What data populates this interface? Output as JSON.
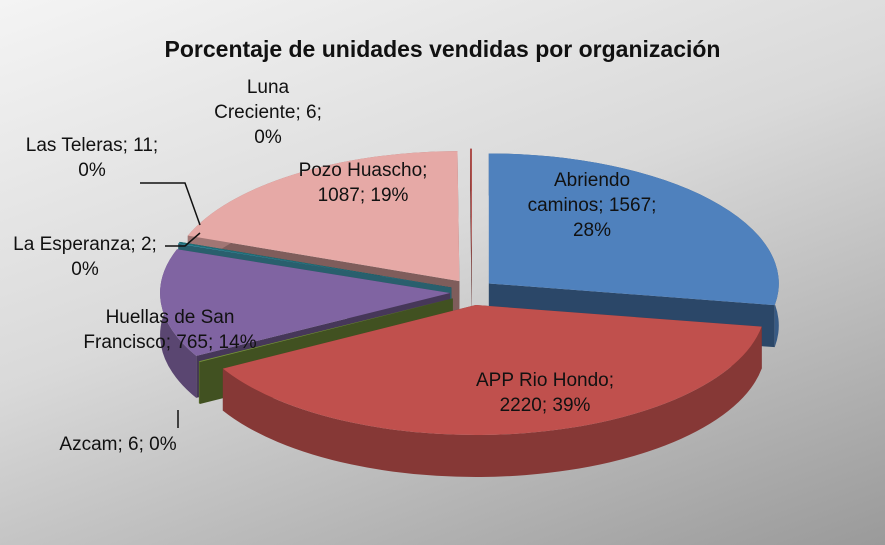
{
  "chart_data": {
    "type": "pie3d",
    "title": "Porcentaje de unidades vendidas por organización",
    "categories": [
      "Abriendo caminos",
      "APP Rio Hondo",
      "Azcam",
      "Huellas de San Francisco",
      "La Esperanza",
      "Las Teleras",
      "Pozo Huascho",
      "Luna Creciente"
    ],
    "values": [
      1567,
      2220,
      6,
      765,
      2,
      11,
      1087,
      6
    ],
    "value_labels": [
      "Abriendo caminos; 1567; 28%",
      "APP Rio Hondo; 2220; 39%",
      "Azcam; 6; 0%",
      "Huellas de San Francisco; 765; 14%",
      "La Esperanza; 2; 0%",
      "Las Teleras; 11; 0%",
      "Pozo Huascho; 1087; 19%",
      "Luna Creciente; 6; 0%"
    ],
    "colors": [
      "#4f81bd",
      "#c0504d",
      "#77933c",
      "#8064a2",
      "#4bacc6",
      "#1f6f78",
      "#e6a9a6",
      "#b0504d"
    ]
  }
}
